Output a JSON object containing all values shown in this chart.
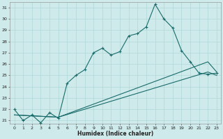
{
  "xlabel": "Humidex (Indice chaleur)",
  "bg_color": "#ceeaea",
  "line_color": "#1a6b6b",
  "grid_color": "#b0d8d8",
  "x_min": 0,
  "x_max": 23,
  "y_min": 21,
  "y_max": 31,
  "line1_x": [
    0,
    1,
    2,
    3,
    4,
    5,
    6,
    7,
    8,
    9,
    10,
    11,
    12,
    13,
    14,
    15,
    16,
    17,
    18,
    19,
    20,
    21,
    22,
    23
  ],
  "line1_y": [
    22.0,
    21.0,
    21.5,
    20.8,
    21.7,
    21.2,
    24.3,
    25.0,
    25.5,
    27.0,
    27.4,
    26.8,
    27.1,
    28.5,
    28.7,
    29.3,
    31.3,
    30.0,
    29.2,
    27.2,
    26.2,
    25.2,
    25.1,
    25.2
  ],
  "line2_x": [
    0,
    5,
    22,
    23
  ],
  "line2_y": [
    21.5,
    21.3,
    26.2,
    25.3
  ],
  "line3_x": [
    0,
    5,
    22,
    23
  ],
  "line3_y": [
    21.5,
    21.3,
    25.3,
    25.0
  ]
}
